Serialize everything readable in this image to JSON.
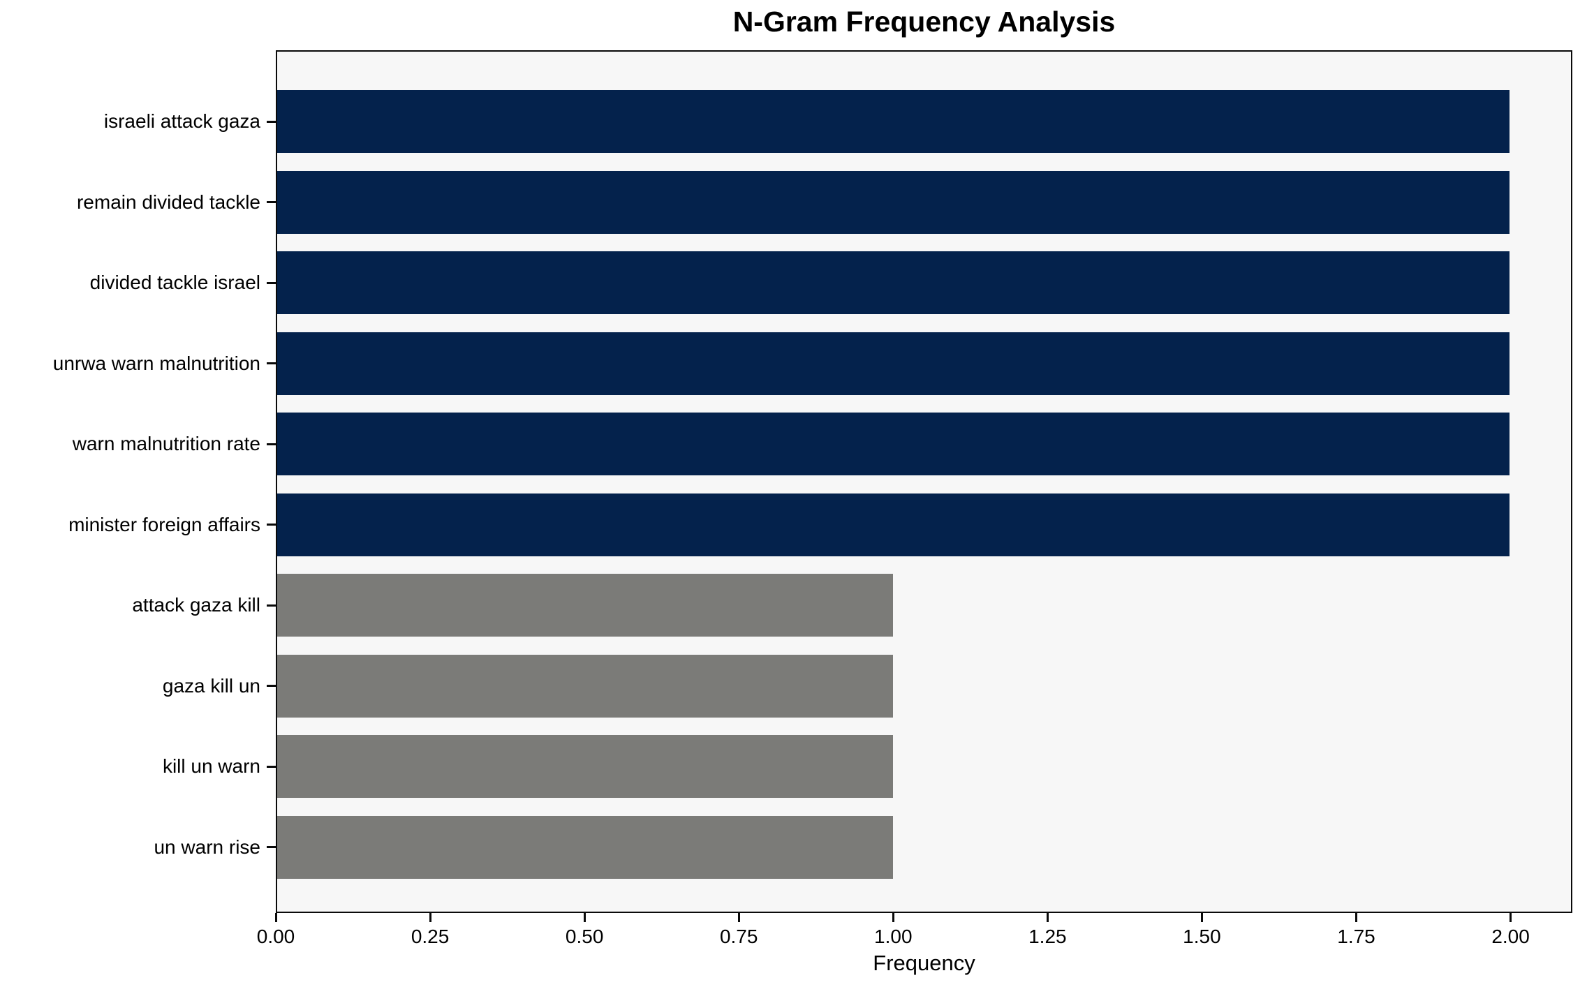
{
  "chart_data": {
    "type": "bar",
    "orientation": "horizontal",
    "title": "N-Gram Frequency Analysis",
    "xlabel": "Frequency",
    "ylabel": "",
    "categories": [
      "israeli attack gaza",
      "remain divided tackle",
      "divided tackle israel",
      "unrwa warn malnutrition",
      "warn malnutrition rate",
      "minister foreign affairs",
      "attack gaza kill",
      "gaza kill un",
      "kill un warn",
      "un warn rise"
    ],
    "values": [
      2,
      2,
      2,
      2,
      2,
      2,
      1,
      1,
      1,
      1
    ],
    "bar_colors": [
      "#04224c",
      "#04224c",
      "#04224c",
      "#04224c",
      "#04224c",
      "#04224c",
      "#7b7b78",
      "#7b7b78",
      "#7b7b78",
      "#7b7b78"
    ],
    "xlim": [
      0,
      2.1
    ],
    "xticks": [
      0.0,
      0.25,
      0.5,
      0.75,
      1.0,
      1.25,
      1.5,
      1.75,
      2.0
    ],
    "xtick_labels": [
      "0.00",
      "0.25",
      "0.50",
      "0.75",
      "1.00",
      "1.25",
      "1.50",
      "1.75",
      "2.00"
    ],
    "grid": false,
    "legend": "none",
    "colors": {
      "high_freq_bar": "#04224c",
      "low_freq_bar": "#7b7b78",
      "plot_background": "#f7f7f7",
      "figure_background": "#ffffff",
      "frame": "#0a0a0a",
      "text": "#000000"
    }
  }
}
